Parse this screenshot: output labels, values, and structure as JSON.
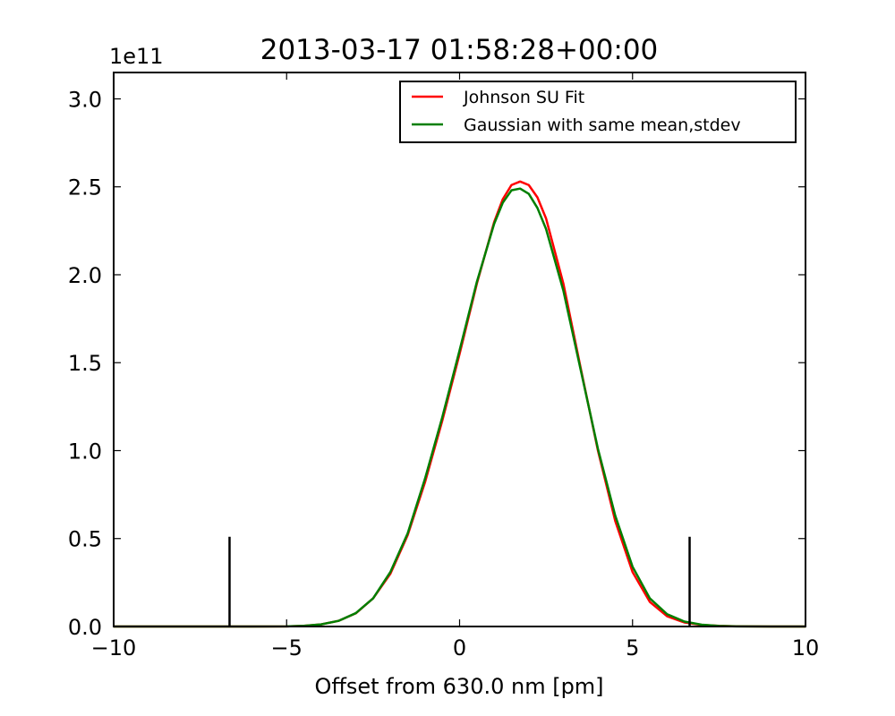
{
  "chart_data": {
    "type": "line",
    "title": "2013-03-17 01:58:28+00:00",
    "xlabel": "Offset from 630.0 nm [pm]",
    "ylabel": "",
    "y_offset_label": "1e11",
    "y_scale": 100000000000,
    "xlim": [
      -10,
      10
    ],
    "ylim": [
      0,
      3.15
    ],
    "x_ticks": [
      -10,
      -5,
      0,
      5,
      10
    ],
    "x_tick_labels": [
      "−10",
      "−5",
      "0",
      "5",
      "10"
    ],
    "y_ticks": [
      0.0,
      0.5,
      1.0,
      1.5,
      2.0,
      2.5,
      3.0
    ],
    "y_tick_labels": [
      "0.0",
      "0.5",
      "1.0",
      "1.5",
      "2.0",
      "2.5",
      "3.0"
    ],
    "grid": false,
    "legend_position": "top-right",
    "series": [
      {
        "name": "Johnson SU Fit",
        "color": "#ff0000",
        "x": [
          -10,
          -8,
          -7,
          -6,
          -5,
          -4.5,
          -4,
          -3.5,
          -3,
          -2.5,
          -2,
          -1.5,
          -1,
          -0.5,
          0,
          0.5,
          1,
          1.25,
          1.5,
          1.75,
          2,
          2.25,
          2.5,
          3,
          3.5,
          4,
          4.5,
          5,
          5.5,
          6,
          6.5,
          7,
          7.5,
          8,
          9,
          10
        ],
        "y": [
          0,
          0,
          0,
          0,
          0.0008,
          0.004,
          0.012,
          0.032,
          0.075,
          0.16,
          0.3,
          0.52,
          0.82,
          1.17,
          1.55,
          1.95,
          2.3,
          2.43,
          2.51,
          2.53,
          2.51,
          2.44,
          2.32,
          1.95,
          1.47,
          1.0,
          0.6,
          0.31,
          0.14,
          0.058,
          0.023,
          0.009,
          0.004,
          0.0015,
          0.0002,
          0
        ]
      },
      {
        "name": "Gaussian with same mean,stdev",
        "color": "#007f00",
        "x": [
          -10,
          -8,
          -7,
          -6,
          -5,
          -4.5,
          -4,
          -3.5,
          -3,
          -2.5,
          -2,
          -1.5,
          -1,
          -0.5,
          0,
          0.5,
          1,
          1.25,
          1.5,
          1.75,
          2,
          2.25,
          2.5,
          3,
          3.5,
          4,
          4.5,
          5,
          5.5,
          6,
          6.5,
          7,
          7.5,
          8,
          9,
          10
        ],
        "y": [
          0,
          0,
          0,
          0,
          0.0008,
          0.004,
          0.012,
          0.032,
          0.076,
          0.16,
          0.31,
          0.53,
          0.84,
          1.19,
          1.57,
          1.96,
          2.29,
          2.41,
          2.48,
          2.49,
          2.46,
          2.38,
          2.26,
          1.91,
          1.46,
          1.01,
          0.63,
          0.34,
          0.16,
          0.07,
          0.028,
          0.01,
          0.003,
          0.0008,
          0.0001,
          0
        ]
      }
    ],
    "markers": [
      {
        "x": -6.65,
        "y_top": 0.51,
        "color": "#000000"
      },
      {
        "x": 6.65,
        "y_top": 0.51,
        "color": "#000000"
      }
    ]
  }
}
